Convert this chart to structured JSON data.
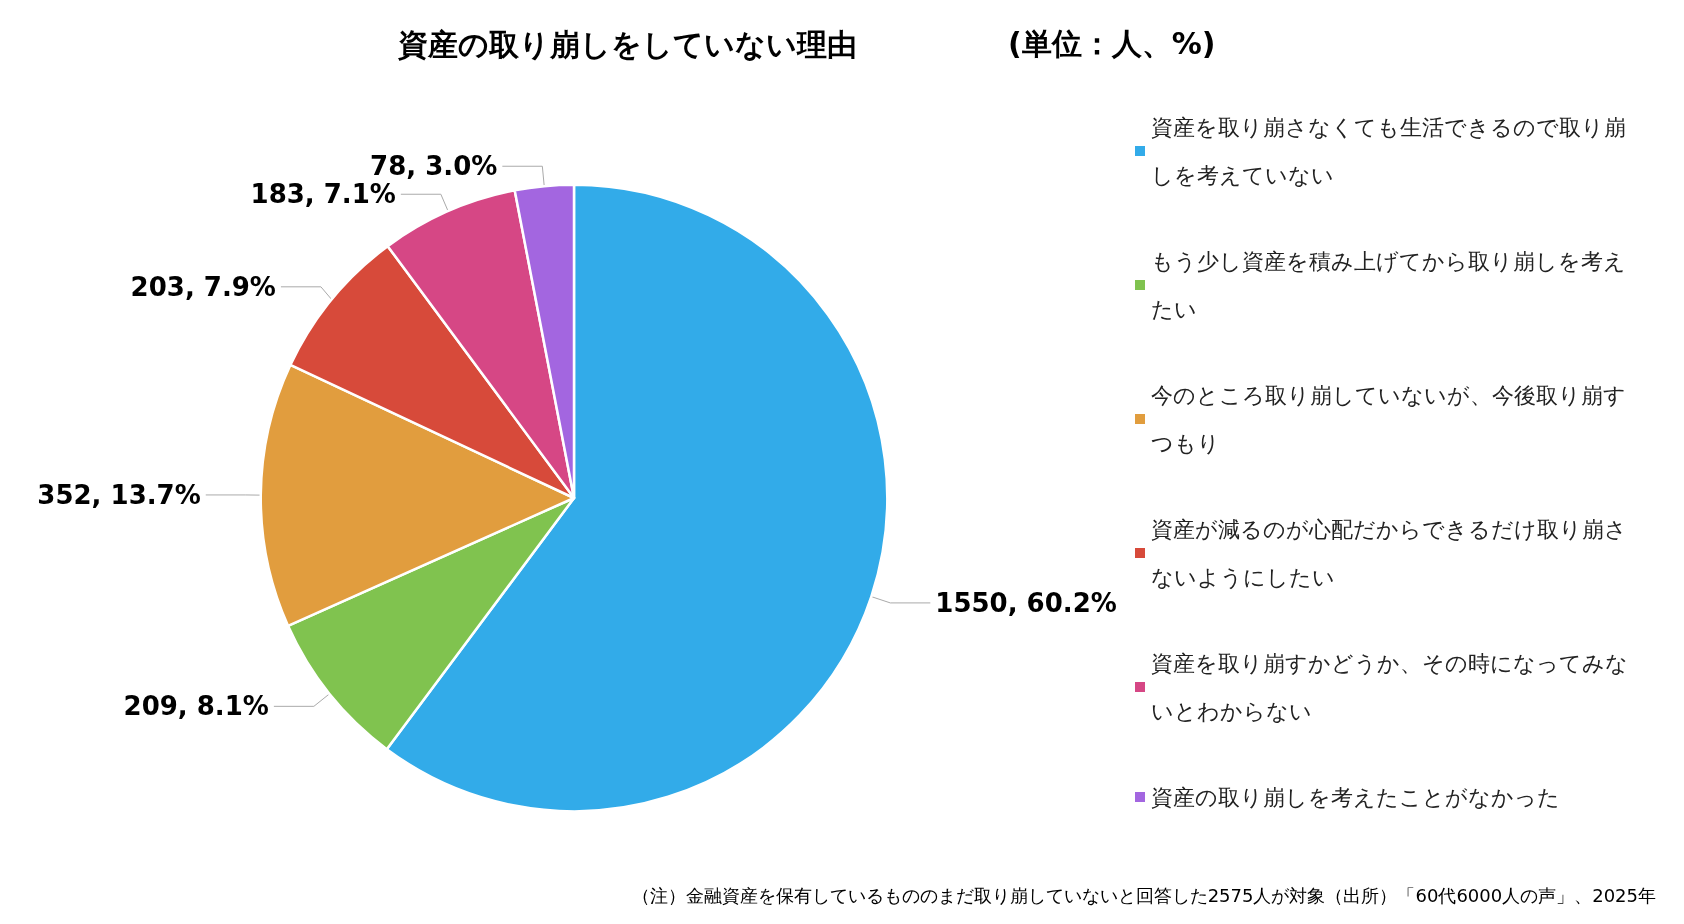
{
  "chart_data": {
    "type": "pie",
    "title": "資産の取り崩しをしていない理由",
    "subtitle": "(単位：人、%)",
    "categories": [
      "資産を取り崩さなくても生活できるので取り崩しを考えていない",
      "もう少し資産を積み上げてから取り崩しを考えたい",
      "今のところ取り崩していないが、今後取り崩すつもり",
      "資産が減るのが心配だからできるだけ取り崩さないようにしたい",
      "資産を取り崩すかどうか、その時になってみないとわからない",
      "資産の取り崩しを考えたことがなかった"
    ],
    "values": [
      1550,
      209,
      352,
      203,
      183,
      78
    ],
    "value_labels": [
      "1550, 60.2%",
      "209, 8.1%",
      "352, 13.7%",
      "203, 7.9%",
      "183, 7.1%",
      "78, 3.0%"
    ],
    "colors": [
      "#32abe9",
      "#80c34f",
      "#e19d3e",
      "#d74a3a",
      "#d64785",
      "#a366e0"
    ],
    "legend": "right",
    "annotations": [
      "（注）金融資産を保有しているもののまだ取り崩していないと回答した2575人が対象（出所）「60代6000人の声」、2025年"
    ]
  }
}
